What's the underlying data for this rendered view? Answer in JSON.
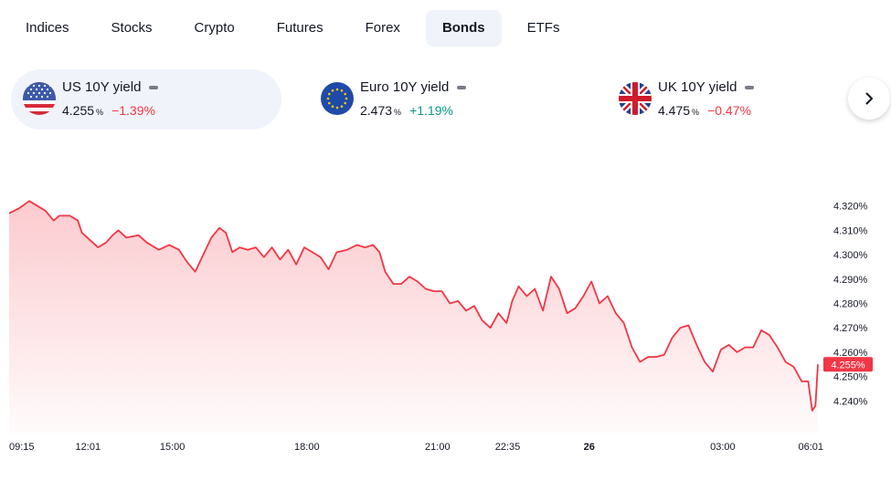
{
  "tabs": [
    {
      "label": "Indices"
    },
    {
      "label": "Stocks"
    },
    {
      "label": "Crypto"
    },
    {
      "label": "Futures"
    },
    {
      "label": "Forex"
    },
    {
      "label": "Bonds",
      "active": true
    },
    {
      "label": "ETFs"
    }
  ],
  "cards": [
    {
      "title": "US 10Y yield",
      "value": "4.255",
      "unit": "%",
      "change": "−1.39%",
      "flag": "us-flag-icon",
      "direction": "down"
    },
    {
      "title": "Euro 10Y yield",
      "value": "2.473",
      "unit": "%",
      "change": "+1.19%",
      "flag": "eu-flag-icon",
      "direction": "up"
    },
    {
      "title": "UK 10Y yield",
      "value": "4.475",
      "unit": "%",
      "change": "−0.47%",
      "flag": "uk-flag-icon",
      "direction": "down"
    }
  ],
  "colors": {
    "line": "#f23645",
    "positive": "#089981",
    "negative": "#f23645",
    "active_tab_bg": "#f0f3fa"
  },
  "chart_data": {
    "type": "area",
    "series_name": "",
    "last_value_label": "4.255%",
    "ylim": [
      4.233,
      4.324
    ],
    "y_ticks": [
      4.32,
      4.31,
      4.3,
      4.29,
      4.28,
      4.27,
      4.26,
      4.25,
      4.24
    ],
    "y_tick_labels": [
      "4.320%",
      "4.310%",
      "4.300%",
      "4.290%",
      "4.280%",
      "4.270%",
      "4.260%",
      "4.250%",
      "4.240%"
    ],
    "x_ticks": [
      {
        "label": "09:15",
        "pos": 0.0
      },
      {
        "label": "12:01",
        "pos": 0.0975
      },
      {
        "label": "15:00",
        "pos": 0.2018
      },
      {
        "label": "18:00",
        "pos": 0.3681
      },
      {
        "label": "21:00",
        "pos": 0.5297
      },
      {
        "label": "22:35",
        "pos": 0.6164
      },
      {
        "label": "26",
        "pos": 0.7173,
        "bold": true
      },
      {
        "label": "03:00",
        "pos": 0.8824
      },
      {
        "label": "06:01",
        "pos": 1.0
      }
    ],
    "points": [
      [
        0.0,
        4.317
      ],
      [
        0.012,
        4.319
      ],
      [
        0.025,
        4.322
      ],
      [
        0.035,
        4.32
      ],
      [
        0.045,
        4.318
      ],
      [
        0.055,
        4.314
      ],
      [
        0.062,
        4.316
      ],
      [
        0.075,
        4.316
      ],
      [
        0.085,
        4.314
      ],
      [
        0.09,
        4.309
      ],
      [
        0.1,
        4.306
      ],
      [
        0.11,
        4.303
      ],
      [
        0.12,
        4.305
      ],
      [
        0.128,
        4.308
      ],
      [
        0.135,
        4.31
      ],
      [
        0.145,
        4.307
      ],
      [
        0.16,
        4.308
      ],
      [
        0.17,
        4.305
      ],
      [
        0.185,
        4.302
      ],
      [
        0.198,
        4.304
      ],
      [
        0.21,
        4.302
      ],
      [
        0.22,
        4.297
      ],
      [
        0.23,
        4.293
      ],
      [
        0.24,
        4.3
      ],
      [
        0.25,
        4.307
      ],
      [
        0.26,
        4.311
      ],
      [
        0.268,
        4.309
      ],
      [
        0.276,
        4.301
      ],
      [
        0.285,
        4.303
      ],
      [
        0.295,
        4.302
      ],
      [
        0.305,
        4.303
      ],
      [
        0.315,
        4.299
      ],
      [
        0.325,
        4.303
      ],
      [
        0.335,
        4.298
      ],
      [
        0.345,
        4.302
      ],
      [
        0.355,
        4.296
      ],
      [
        0.365,
        4.303
      ],
      [
        0.375,
        4.301
      ],
      [
        0.385,
        4.299
      ],
      [
        0.395,
        4.294
      ],
      [
        0.405,
        4.301
      ],
      [
        0.418,
        4.302
      ],
      [
        0.43,
        4.304
      ],
      [
        0.44,
        4.303
      ],
      [
        0.45,
        4.304
      ],
      [
        0.458,
        4.301
      ],
      [
        0.465,
        4.293
      ],
      [
        0.475,
        4.288
      ],
      [
        0.485,
        4.288
      ],
      [
        0.495,
        4.291
      ],
      [
        0.505,
        4.289
      ],
      [
        0.515,
        4.286
      ],
      [
        0.525,
        4.285
      ],
      [
        0.535,
        4.285
      ],
      [
        0.545,
        4.28
      ],
      [
        0.555,
        4.281
      ],
      [
        0.565,
        4.277
      ],
      [
        0.575,
        4.279
      ],
      [
        0.585,
        4.273
      ],
      [
        0.595,
        4.27
      ],
      [
        0.605,
        4.276
      ],
      [
        0.615,
        4.272
      ],
      [
        0.622,
        4.281
      ],
      [
        0.63,
        4.287
      ],
      [
        0.64,
        4.283
      ],
      [
        0.65,
        4.286
      ],
      [
        0.66,
        4.277
      ],
      [
        0.67,
        4.291
      ],
      [
        0.68,
        4.286
      ],
      [
        0.69,
        4.276
      ],
      [
        0.7,
        4.278
      ],
      [
        0.71,
        4.283
      ],
      [
        0.72,
        4.289
      ],
      [
        0.73,
        4.28
      ],
      [
        0.74,
        4.283
      ],
      [
        0.75,
        4.276
      ],
      [
        0.76,
        4.272
      ],
      [
        0.77,
        4.262
      ],
      [
        0.78,
        4.256
      ],
      [
        0.79,
        4.258
      ],
      [
        0.8,
        4.258
      ],
      [
        0.81,
        4.259
      ],
      [
        0.82,
        4.266
      ],
      [
        0.83,
        4.27
      ],
      [
        0.84,
        4.271
      ],
      [
        0.85,
        4.263
      ],
      [
        0.86,
        4.256
      ],
      [
        0.87,
        4.252
      ],
      [
        0.88,
        4.261
      ],
      [
        0.89,
        4.263
      ],
      [
        0.9,
        4.26
      ],
      [
        0.91,
        4.262
      ],
      [
        0.92,
        4.262
      ],
      [
        0.93,
        4.269
      ],
      [
        0.94,
        4.267
      ],
      [
        0.95,
        4.262
      ],
      [
        0.96,
        4.256
      ],
      [
        0.97,
        4.254
      ],
      [
        0.98,
        4.248
      ],
      [
        0.988,
        4.248
      ],
      [
        0.993,
        4.236
      ],
      [
        0.997,
        4.238
      ],
      [
        1.0,
        4.255
      ]
    ]
  }
}
